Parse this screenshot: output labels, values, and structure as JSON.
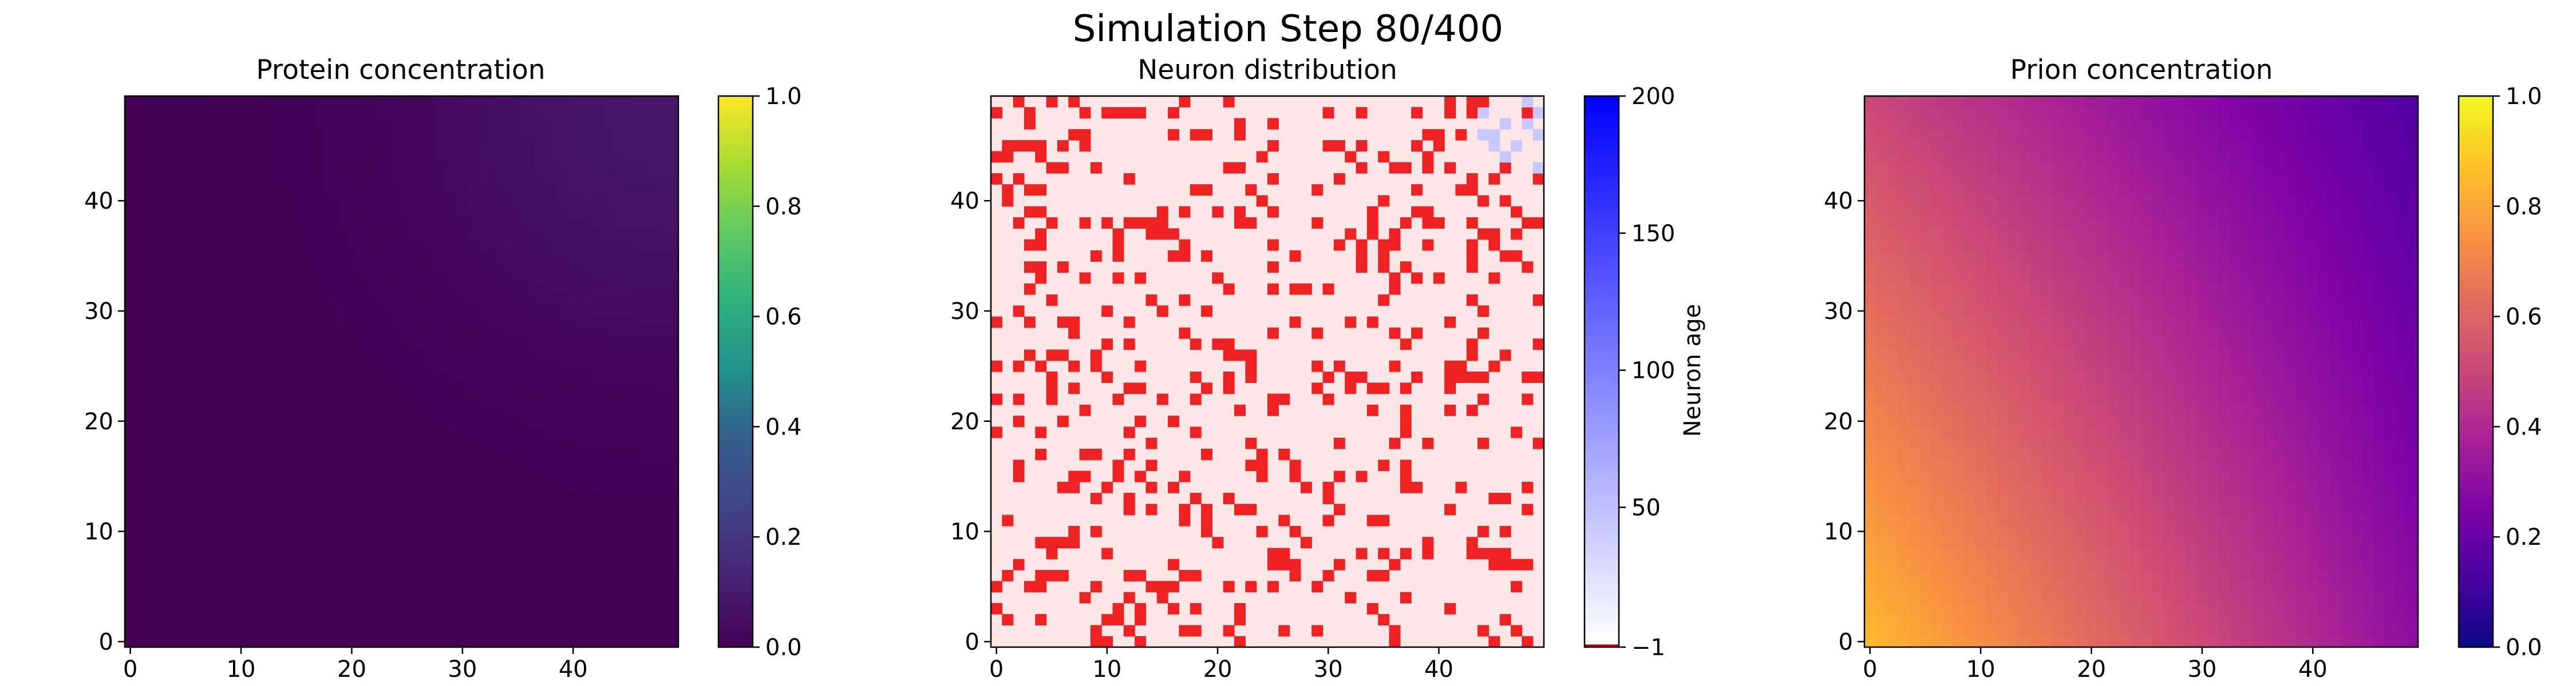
{
  "figure": {
    "title": "Simulation Step 80/400"
  },
  "chart_data": [
    {
      "type": "heatmap",
      "title": "Protein concentration",
      "grid_size": 50,
      "xlim": [
        -0.5,
        49.5
      ],
      "ylim": [
        -0.5,
        49.5
      ],
      "origin": "lower",
      "x_ticks": [
        0,
        10,
        20,
        30,
        40
      ],
      "y_ticks": [
        0,
        10,
        20,
        30,
        40
      ],
      "colormap": "viridis",
      "colorbar": {
        "vmin": 0.0,
        "vmax": 1.0,
        "ticks": [
          0.0,
          0.2,
          0.4,
          0.6,
          0.8,
          1.0
        ],
        "tick_labels": [
          "0.0",
          "0.2",
          "0.4",
          "0.6",
          "0.8",
          "1.0"
        ],
        "label": ""
      },
      "field": {
        "description": "near-zero everywhere, faint maximum at the top-right corner",
        "base": 0.0,
        "peak_value": 0.08,
        "peak_at": [
          49,
          49
        ],
        "falloff_cells": 22
      }
    },
    {
      "type": "heatmap",
      "title": "Neuron distribution",
      "grid_size": 50,
      "xlim": [
        -0.5,
        49.5
      ],
      "ylim": [
        -0.5,
        49.5
      ],
      "origin": "lower",
      "x_ticks": [
        0,
        10,
        20,
        30,
        40
      ],
      "y_ticks": [
        0,
        10,
        20,
        30,
        40
      ],
      "colormap": "custom: -1 dark red, 0 white, 200 blue",
      "colorbar": {
        "vmin": -1,
        "vmax": 200,
        "ticks": [
          -1,
          50,
          100,
          150,
          200
        ],
        "tick_labels": [
          "−1",
          "50",
          "100",
          "150",
          "200"
        ],
        "label": "Neuron age"
      },
      "background_value": 0,
      "background_color": "#ffe6e6",
      "dead_color": "#ee2222",
      "dead_fraction": 0.18,
      "young_cells": [
        [
          44,
          46
        ],
        [
          45,
          46
        ],
        [
          45,
          45
        ],
        [
          46,
          47
        ],
        [
          47,
          45
        ],
        [
          48,
          47
        ],
        [
          49,
          48
        ],
        [
          49,
          46
        ],
        [
          46,
          44
        ],
        [
          49,
          43
        ],
        [
          48,
          49
        ],
        [
          44,
          48
        ]
      ],
      "young_color": "#c8c8ff"
    },
    {
      "type": "heatmap",
      "title": "Prion concentration",
      "grid_size": 50,
      "xlim": [
        -0.5,
        49.5
      ],
      "ylim": [
        -0.5,
        49.5
      ],
      "origin": "lower",
      "x_ticks": [
        0,
        10,
        20,
        30,
        40
      ],
      "y_ticks": [
        0,
        10,
        20,
        30,
        40
      ],
      "colormap": "plasma",
      "colorbar": {
        "vmin": 0.0,
        "vmax": 1.0,
        "ticks": [
          0.0,
          0.2,
          0.4,
          0.6,
          0.8,
          1.0
        ],
        "tick_labels": [
          "0.0",
          "0.2",
          "0.4",
          "0.6",
          "0.8",
          "1.0"
        ],
        "label": ""
      },
      "field": {
        "description": "highest at bottom-left, decreasing toward top-right",
        "value_at_origin": 0.84,
        "value_at_far_corner": 0.14,
        "value_at_top_left": 0.5,
        "value_at_bottom_right": 0.3
      }
    }
  ]
}
